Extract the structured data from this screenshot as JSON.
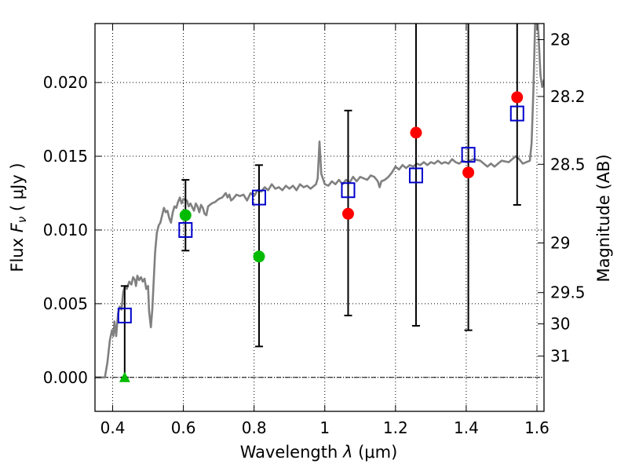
{
  "chart_data": {
    "type": "scatter",
    "xlabel_text": "Wavelength",
    "xlabel_symbol": "λ",
    "xlabel_unit": "(μm)",
    "ylabel_text": "Flux",
    "ylabel_symbol": "F",
    "ylabel_subscript": "ν",
    "ylabel_unit": "( μJy )",
    "y2label": "Magnitude (AB)",
    "xlim": [
      0.35,
      1.62
    ],
    "ylim": [
      -0.0023,
      0.024
    ],
    "grid": true,
    "x_ticks": [
      {
        "value": 0.4,
        "label": "0.4"
      },
      {
        "value": 0.6,
        "label": "0.6"
      },
      {
        "value": 0.8,
        "label": "0.8"
      },
      {
        "value": 1.0,
        "label": "1"
      },
      {
        "value": 1.2,
        "label": "1.2"
      },
      {
        "value": 1.4,
        "label": "1.4"
      },
      {
        "value": 1.6,
        "label": "1.6"
      }
    ],
    "y_ticks": [
      {
        "value": 0.0,
        "label": "0.000"
      },
      {
        "value": 0.005,
        "label": "0.005"
      },
      {
        "value": 0.01,
        "label": "0.010"
      },
      {
        "value": 0.015,
        "label": "0.015"
      },
      {
        "value": 0.02,
        "label": "0.020"
      }
    ],
    "magnitude_ticks": [
      {
        "mag": 28,
        "label": "28"
      },
      {
        "mag": 28.2,
        "label": "28.2"
      },
      {
        "mag": 28.5,
        "label": "28.5"
      },
      {
        "mag": 29,
        "label": "29"
      },
      {
        "mag": 29.5,
        "label": "29.5"
      },
      {
        "mag": 30,
        "label": "30"
      },
      {
        "mag": 31,
        "label": "31"
      }
    ],
    "zero_line": true,
    "series": [
      {
        "kind": "model-spectrum",
        "color": "#808080",
        "points": [
          [
            0.35,
            0.0
          ],
          [
            0.378,
            0.0
          ],
          [
            0.385,
            0.001
          ],
          [
            0.392,
            0.0025
          ],
          [
            0.398,
            0.0032
          ],
          [
            0.402,
            0.0028
          ],
          [
            0.405,
            0.0038
          ],
          [
            0.41,
            0.0028
          ],
          [
            0.415,
            0.0043
          ],
          [
            0.42,
            0.0048
          ],
          [
            0.425,
            0.0046
          ],
          [
            0.43,
            0.0058
          ],
          [
            0.435,
            0.0062
          ],
          [
            0.44,
            0.006
          ],
          [
            0.447,
            0.0065
          ],
          [
            0.453,
            0.0063
          ],
          [
            0.458,
            0.0068
          ],
          [
            0.463,
            0.0066
          ],
          [
            0.466,
            0.0062
          ],
          [
            0.47,
            0.0069
          ],
          [
            0.475,
            0.0066
          ],
          [
            0.48,
            0.0068
          ],
          [
            0.485,
            0.0065
          ],
          [
            0.49,
            0.0067
          ],
          [
            0.495,
            0.006
          ],
          [
            0.5,
            0.0062
          ],
          [
            0.503,
            0.0045
          ],
          [
            0.508,
            0.0034
          ],
          [
            0.512,
            0.0046
          ],
          [
            0.515,
            0.006
          ],
          [
            0.52,
            0.0085
          ],
          [
            0.525,
            0.0098
          ],
          [
            0.53,
            0.0103
          ],
          [
            0.535,
            0.0105
          ],
          [
            0.54,
            0.011
          ],
          [
            0.545,
            0.0115
          ],
          [
            0.55,
            0.0112
          ],
          [
            0.555,
            0.0113
          ],
          [
            0.56,
            0.0108
          ],
          [
            0.565,
            0.0105
          ],
          [
            0.57,
            0.0112
          ],
          [
            0.575,
            0.0116
          ],
          [
            0.58,
            0.0115
          ],
          [
            0.585,
            0.0119
          ],
          [
            0.59,
            0.0122
          ],
          [
            0.595,
            0.0118
          ],
          [
            0.6,
            0.0121
          ],
          [
            0.61,
            0.012
          ],
          [
            0.615,
            0.0116
          ],
          [
            0.62,
            0.0118
          ],
          [
            0.63,
            0.0113
          ],
          [
            0.635,
            0.0118
          ],
          [
            0.64,
            0.0116
          ],
          [
            0.645,
            0.0112
          ],
          [
            0.65,
            0.0117
          ],
          [
            0.655,
            0.0115
          ],
          [
            0.66,
            0.0111
          ],
          [
            0.665,
            0.011
          ],
          [
            0.67,
            0.0116
          ],
          [
            0.68,
            0.0118
          ],
          [
            0.69,
            0.0119
          ],
          [
            0.7,
            0.0121
          ],
          [
            0.71,
            0.0122
          ],
          [
            0.72,
            0.0125
          ],
          [
            0.725,
            0.0122
          ],
          [
            0.73,
            0.0124
          ],
          [
            0.735,
            0.012
          ],
          [
            0.74,
            0.0121
          ],
          [
            0.75,
            0.0124
          ],
          [
            0.76,
            0.0123
          ],
          [
            0.77,
            0.0124
          ],
          [
            0.78,
            0.012
          ],
          [
            0.79,
            0.0125
          ],
          [
            0.8,
            0.0123
          ],
          [
            0.81,
            0.0127
          ],
          [
            0.82,
            0.0126
          ],
          [
            0.83,
            0.0129
          ],
          [
            0.84,
            0.0127
          ],
          [
            0.85,
            0.0131
          ],
          [
            0.86,
            0.0128
          ],
          [
            0.87,
            0.0129
          ],
          [
            0.88,
            0.0127
          ],
          [
            0.89,
            0.013
          ],
          [
            0.9,
            0.0128
          ],
          [
            0.91,
            0.013
          ],
          [
            0.92,
            0.0127
          ],
          [
            0.93,
            0.0131
          ],
          [
            0.94,
            0.0129
          ],
          [
            0.95,
            0.013
          ],
          [
            0.96,
            0.0128
          ],
          [
            0.97,
            0.013
          ],
          [
            0.975,
            0.0131
          ],
          [
            0.98,
            0.0135
          ],
          [
            0.985,
            0.016
          ],
          [
            0.99,
            0.0138
          ],
          [
            1.0,
            0.0131
          ],
          [
            1.01,
            0.013
          ],
          [
            1.02,
            0.0133
          ],
          [
            1.03,
            0.0131
          ],
          [
            1.04,
            0.0134
          ],
          [
            1.05,
            0.0131
          ],
          [
            1.06,
            0.0134
          ],
          [
            1.07,
            0.0132
          ],
          [
            1.08,
            0.0136
          ],
          [
            1.09,
            0.0133
          ],
          [
            1.1,
            0.0136
          ],
          [
            1.11,
            0.0135
          ],
          [
            1.12,
            0.0134
          ],
          [
            1.13,
            0.0137
          ],
          [
            1.14,
            0.0136
          ],
          [
            1.15,
            0.0133
          ],
          [
            1.155,
            0.0129
          ],
          [
            1.16,
            0.0133
          ],
          [
            1.17,
            0.0134
          ],
          [
            1.18,
            0.0136
          ],
          [
            1.19,
            0.0139
          ],
          [
            1.2,
            0.0143
          ],
          [
            1.21,
            0.0141
          ],
          [
            1.22,
            0.0144
          ],
          [
            1.23,
            0.0142
          ],
          [
            1.24,
            0.0144
          ],
          [
            1.25,
            0.0143
          ],
          [
            1.26,
            0.0145
          ],
          [
            1.27,
            0.0144
          ],
          [
            1.28,
            0.0146
          ],
          [
            1.29,
            0.0144
          ],
          [
            1.3,
            0.0146
          ],
          [
            1.31,
            0.0145
          ],
          [
            1.32,
            0.0147
          ],
          [
            1.33,
            0.0145
          ],
          [
            1.34,
            0.0146
          ],
          [
            1.35,
            0.0145
          ],
          [
            1.36,
            0.0148
          ],
          [
            1.37,
            0.0146
          ],
          [
            1.38,
            0.0145
          ],
          [
            1.39,
            0.0147
          ],
          [
            1.4,
            0.0146
          ],
          [
            1.42,
            0.0148
          ],
          [
            1.44,
            0.0147
          ],
          [
            1.46,
            0.0143
          ],
          [
            1.47,
            0.0145
          ],
          [
            1.48,
            0.0143
          ],
          [
            1.5,
            0.0147
          ],
          [
            1.52,
            0.0146
          ],
          [
            1.54,
            0.015
          ],
          [
            1.55,
            0.0148
          ],
          [
            1.56,
            0.0145
          ],
          [
            1.57,
            0.0146
          ],
          [
            1.58,
            0.0147
          ],
          [
            1.585,
            0.0159
          ],
          [
            1.59,
            0.0195
          ],
          [
            1.595,
            0.024
          ],
          [
            1.6,
            0.025
          ],
          [
            1.605,
            0.023
          ],
          [
            1.61,
            0.0205
          ],
          [
            1.615,
            0.0197
          ],
          [
            1.62,
            0.0202
          ]
        ]
      },
      {
        "kind": "model-photometry",
        "marker": "open-square",
        "color": "#0000cc",
        "points": [
          [
            0.434,
            0.0042
          ],
          [
            0.606,
            0.01
          ],
          [
            0.814,
            0.0122
          ],
          [
            1.066,
            0.0127
          ],
          [
            1.258,
            0.0137
          ],
          [
            1.406,
            0.0151
          ],
          [
            1.544,
            0.0179
          ]
        ]
      },
      {
        "kind": "photometry",
        "marker": "circle",
        "color": "#ff0000",
        "points": [
          [
            1.066,
            0.0111
          ],
          [
            1.258,
            0.0166
          ],
          [
            1.406,
            0.0139
          ],
          [
            1.544,
            0.019
          ]
        ]
      },
      {
        "kind": "photometry",
        "marker": "circle",
        "color": "#00bb00",
        "points": [
          [
            0.606,
            0.011
          ],
          [
            0.814,
            0.0082
          ]
        ]
      },
      {
        "kind": "upper-limit",
        "marker": "triangle",
        "color": "#00bb00",
        "points": [
          [
            0.434,
            0.0
          ]
        ]
      }
    ],
    "error_bars": [
      {
        "x": 0.434,
        "low": 0.0,
        "high": 0.0062
      },
      {
        "x": 0.606,
        "low": 0.0086,
        "high": 0.0134
      },
      {
        "x": 0.814,
        "low": 0.0021,
        "high": 0.0144
      },
      {
        "x": 1.066,
        "low": 0.0042,
        "high": 0.0181
      },
      {
        "x": 1.258,
        "low": 0.0035,
        "high": 0.026
      },
      {
        "x": 1.406,
        "low": 0.0032,
        "high": 0.026
      },
      {
        "x": 1.544,
        "low": 0.0117,
        "high": 0.026
      }
    ]
  }
}
